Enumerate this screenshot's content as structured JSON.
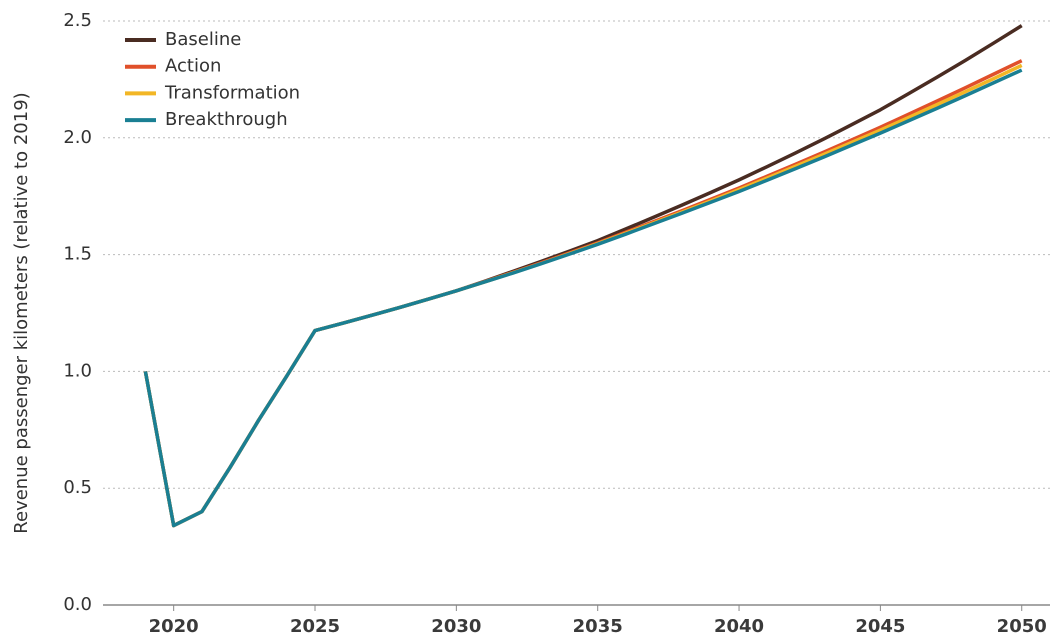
{
  "chart_data": {
    "type": "line",
    "y_label": "Revenue passenger kilometers (relative to 2019)",
    "x": [
      2019,
      2020,
      2021,
      2022,
      2023,
      2024,
      2025,
      2026,
      2027,
      2028,
      2029,
      2030,
      2031,
      2032,
      2033,
      2034,
      2035,
      2036,
      2037,
      2038,
      2039,
      2040,
      2041,
      2042,
      2043,
      2044,
      2045,
      2046,
      2047,
      2048,
      2049,
      2050
    ],
    "series": [
      {
        "name": "Baseline",
        "color": "#4a2c22",
        "values": [
          1.0,
          0.34,
          0.4,
          0.59,
          0.79,
          0.98,
          1.175,
          1.207,
          1.24,
          1.274,
          1.309,
          1.345,
          1.386,
          1.428,
          1.471,
          1.515,
          1.56,
          1.61,
          1.661,
          1.713,
          1.766,
          1.82,
          1.877,
          1.935,
          1.995,
          2.057,
          2.12,
          2.189,
          2.259,
          2.331,
          2.405,
          2.48
        ]
      },
      {
        "name": "Action",
        "color": "#e0502a",
        "values": [
          1.0,
          0.34,
          0.4,
          0.59,
          0.79,
          0.98,
          1.175,
          1.207,
          1.24,
          1.274,
          1.309,
          1.345,
          1.384,
          1.424,
          1.465,
          1.507,
          1.55,
          1.596,
          1.642,
          1.689,
          1.737,
          1.785,
          1.836,
          1.887,
          1.939,
          1.992,
          2.045,
          2.101,
          2.157,
          2.214,
          2.272,
          2.33
        ]
      },
      {
        "name": "Transformation",
        "color": "#f2b625",
        "values": [
          1.0,
          0.34,
          0.4,
          0.59,
          0.79,
          0.98,
          1.175,
          1.207,
          1.24,
          1.274,
          1.309,
          1.345,
          1.383,
          1.422,
          1.462,
          1.504,
          1.547,
          1.592,
          1.637,
          1.683,
          1.73,
          1.778,
          1.828,
          1.878,
          1.929,
          1.981,
          2.033,
          2.087,
          2.142,
          2.197,
          2.253,
          2.31
        ]
      },
      {
        "name": "Breakthrough",
        "color": "#1a7f93",
        "values": [
          1.0,
          0.34,
          0.4,
          0.59,
          0.79,
          0.98,
          1.175,
          1.207,
          1.24,
          1.274,
          1.309,
          1.345,
          1.383,
          1.421,
          1.461,
          1.502,
          1.544,
          1.588,
          1.633,
          1.678,
          1.724,
          1.77,
          1.819,
          1.868,
          1.918,
          1.969,
          2.02,
          2.073,
          2.126,
          2.18,
          2.235,
          2.29
        ]
      }
    ],
    "xlim": [
      2017.5,
      2051
    ],
    "xticks": [
      2020,
      2025,
      2030,
      2035,
      2040,
      2045,
      2050
    ],
    "ylim": [
      0,
      2.5
    ],
    "yticks": [
      {
        "value": 0,
        "label": "0.0"
      },
      0.5,
      {
        "value": 1,
        "label": "1.0"
      },
      1.5,
      {
        "value": 2,
        "label": "2.0"
      },
      2.5
    ],
    "grid": true,
    "legend": "top-left"
  }
}
